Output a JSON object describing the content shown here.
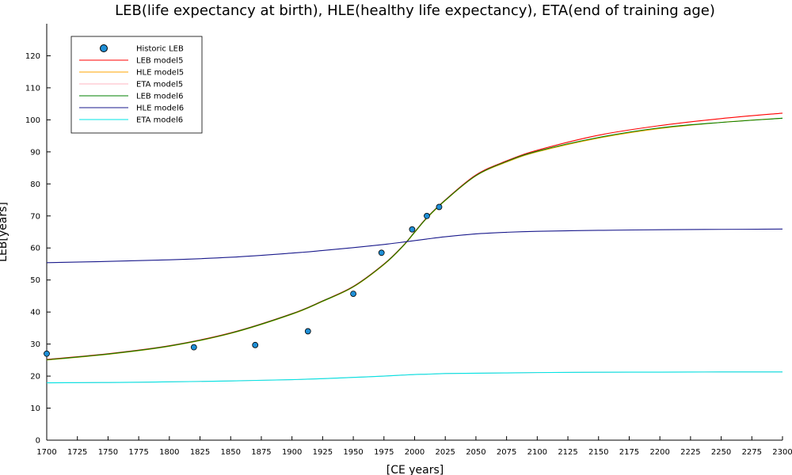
{
  "chart_data": {
    "type": "line",
    "title": "LEB(life expectancy at birth), HLE(healthy life expectancy), ETA(end of training age)",
    "xlabel": "[CE years]",
    "ylabel": "LEB[years]",
    "xlim": [
      1700,
      2300
    ],
    "ylim": [
      0,
      130
    ],
    "xticks": [
      1700,
      1725,
      1750,
      1775,
      1800,
      1825,
      1850,
      1875,
      1900,
      1925,
      1950,
      1975,
      2000,
      2025,
      2050,
      2075,
      2100,
      2125,
      2150,
      2175,
      2200,
      2225,
      2250,
      2275,
      2300
    ],
    "yticks": [
      0,
      10,
      20,
      30,
      40,
      50,
      60,
      70,
      80,
      90,
      100,
      110,
      120
    ],
    "grid": false,
    "legend_position": "top-left",
    "x": [
      1700,
      1750,
      1800,
      1850,
      1900,
      1925,
      1950,
      1975,
      1990,
      2000,
      2010,
      2025,
      2050,
      2075,
      2100,
      2150,
      2200,
      2250,
      2300
    ],
    "series": [
      {
        "name": "Historic LEB",
        "kind": "scatter",
        "color": "#1f8fd6",
        "points": [
          [
            1700,
            27
          ],
          [
            1820,
            29
          ],
          [
            1870,
            29.7
          ],
          [
            1913,
            34
          ],
          [
            1950,
            45.7
          ],
          [
            1973,
            58.5
          ],
          [
            1998,
            65.8
          ],
          [
            2010,
            70
          ],
          [
            2020,
            72.8
          ]
        ]
      },
      {
        "name": "LEB model5",
        "kind": "line",
        "color": "#ff0000",
        "values": [
          25.2,
          27.0,
          29.5,
          33.5,
          39.5,
          43.5,
          48.0,
          55.0,
          60.5,
          65.0,
          69.5,
          75.0,
          82.8,
          87.2,
          90.5,
          95.2,
          98.2,
          100.4,
          102.1
        ]
      },
      {
        "name": "HLE model5",
        "kind": "line",
        "color": "#ffa500",
        "values": [
          25.0,
          26.8,
          29.3,
          33.3,
          39.3,
          43.3,
          47.8,
          54.8,
          60.3,
          64.8,
          69.3,
          74.8,
          82.5,
          86.8,
          90.0,
          94.3,
          97.3,
          99.2,
          100.5
        ]
      },
      {
        "name": "ETA model5",
        "kind": "line",
        "color": "#ffb6c1",
        "values": [
          17.9,
          18.0,
          18.2,
          18.5,
          18.9,
          19.2,
          19.6,
          20.0,
          20.3,
          20.5,
          20.6,
          20.8,
          20.9,
          21.0,
          21.1,
          21.2,
          21.25,
          21.3,
          21.3
        ]
      },
      {
        "name": "LEB model6",
        "kind": "line",
        "color": "#008000",
        "values": [
          25.1,
          26.9,
          29.4,
          33.4,
          39.4,
          43.4,
          47.9,
          54.9,
          60.4,
          64.9,
          69.4,
          74.9,
          82.6,
          87.0,
          90.2,
          94.5,
          97.5,
          99.2,
          100.5
        ]
      },
      {
        "name": "HLE model6",
        "kind": "line",
        "color": "#1a1a8c",
        "values": [
          55.4,
          55.8,
          56.3,
          57.1,
          58.4,
          59.2,
          60.1,
          61.1,
          61.8,
          62.3,
          62.8,
          63.5,
          64.4,
          64.9,
          65.2,
          65.5,
          65.7,
          65.8,
          65.9
        ]
      },
      {
        "name": "ETA model6",
        "kind": "line",
        "color": "#00e5e5",
        "values": [
          17.9,
          18.0,
          18.2,
          18.5,
          18.9,
          19.2,
          19.6,
          20.0,
          20.3,
          20.5,
          20.6,
          20.8,
          20.9,
          21.0,
          21.1,
          21.2,
          21.25,
          21.3,
          21.3
        ]
      }
    ]
  }
}
